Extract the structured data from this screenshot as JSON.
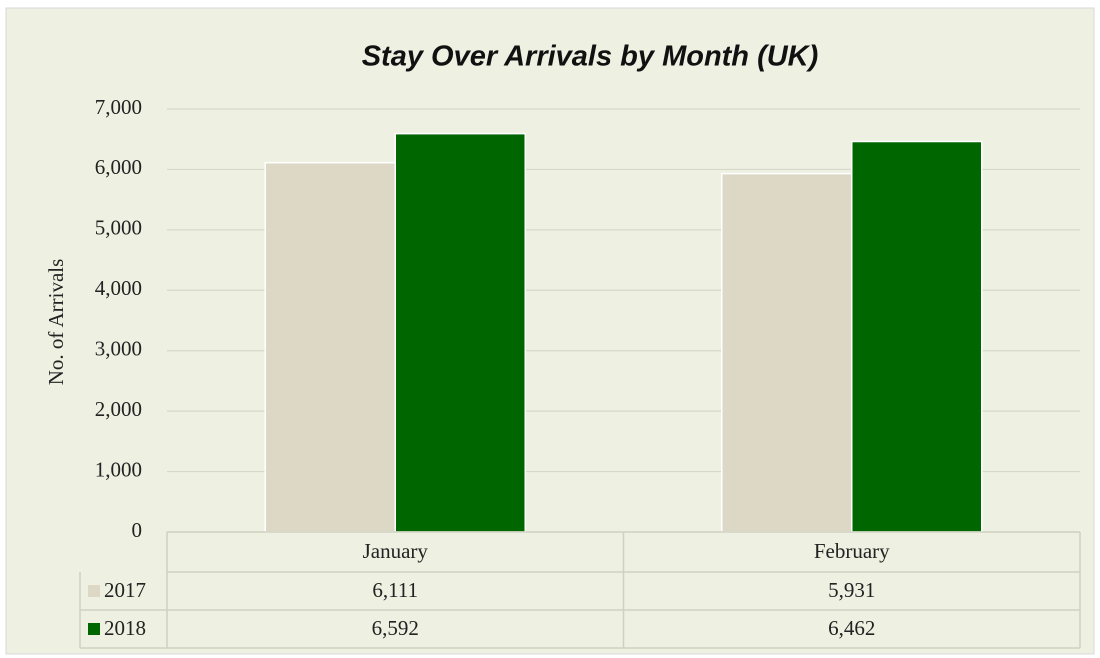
{
  "chart_data": {
    "type": "bar",
    "title": "Stay Over Arrivals by Month (UK)",
    "y_label": "No. of Arrivals",
    "categories": [
      "January",
      "February"
    ],
    "series": [
      {
        "name": "2017",
        "color": "#ddd8c5",
        "values": [
          6111,
          5931
        ],
        "value_labels": [
          "6,111",
          "5,931"
        ]
      },
      {
        "name": "2018",
        "color": "#006600",
        "values": [
          6592,
          6462
        ],
        "value_labels": [
          "6,592",
          "6,462"
        ]
      }
    ],
    "ylim": [
      0,
      7000
    ],
    "yticks": [
      0,
      {
        "value": 1000,
        "label": "1,000"
      },
      {
        "value": 2000,
        "label": "2,000"
      },
      {
        "value": 3000,
        "label": "3,000"
      },
      {
        "value": 4000,
        "label": "4,000"
      },
      {
        "value": 5000,
        "label": "5,000"
      },
      {
        "value": 6000,
        "label": "6,000"
      },
      {
        "value": 7000,
        "label": "7,000"
      }
    ],
    "grid": true
  }
}
